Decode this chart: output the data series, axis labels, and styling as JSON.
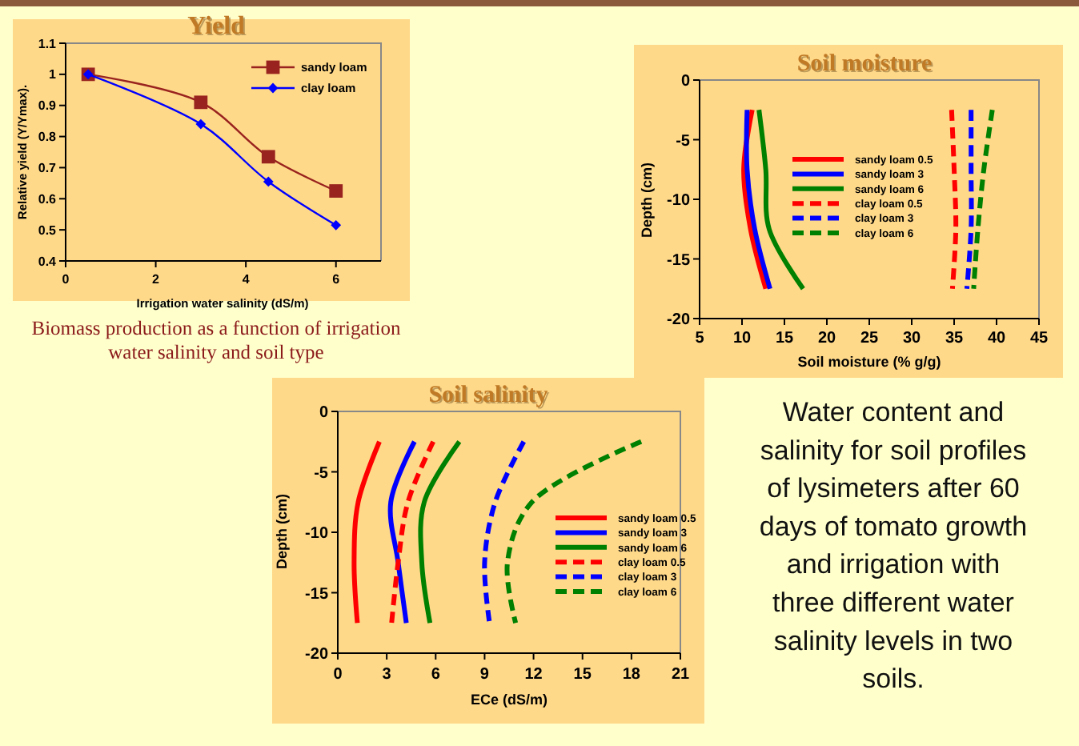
{
  "chart_data": [
    {
      "type": "line",
      "title": "Yield",
      "xlabel": "Irrigation water salinity (dS/m)",
      "ylabel": "Relative yield (Y/Ymax).",
      "xlim": [
        0,
        7
      ],
      "xticks": [
        0,
        2,
        4,
        6
      ],
      "ylim": [
        0.4,
        1.1
      ],
      "yticks": [
        0.4,
        0.5,
        0.6,
        0.7,
        0.8,
        0.9,
        1,
        1.1
      ],
      "legend": "top right",
      "annotations": [
        "Biomass production as a function of irrigation\nwater salinity and soil type"
      ],
      "series": [
        {
          "name": "sandy loam",
          "color": "#99231f",
          "marker": "square",
          "x": [
            0.5,
            3,
            4.5,
            6
          ],
          "values": [
            1,
            0.91,
            0.735,
            0.625
          ]
        },
        {
          "name": "clay loam",
          "color": "#0000ff",
          "marker": "diamond",
          "x": [
            0.5,
            3,
            4.5,
            6
          ],
          "values": [
            1,
            0.84,
            0.655,
            0.515
          ]
        }
      ]
    },
    {
      "type": "line",
      "title": "Soil moisture",
      "xlabel": "Soil moisture (% g/g)",
      "ylabel": "Depth (cm)",
      "xlim": [
        5,
        45
      ],
      "xticks": [
        5,
        10,
        15,
        20,
        25,
        30,
        35,
        40,
        45
      ],
      "ylim": [
        -20,
        0
      ],
      "yticks": [
        -20,
        -15,
        -10,
        -5,
        0
      ],
      "legend": "center",
      "marker": "none",
      "series": [
        {
          "name": "sandy loam 0.5",
          "color": "#ff0000",
          "line_style": "solid",
          "x": [
            11.2,
            10.2,
            11,
            12.8
          ],
          "values": [
            -2.5,
            -7.5,
            -12.5,
            -17.5
          ]
        },
        {
          "name": "sandy loam 3",
          "color": "#0000ff",
          "line_style": "solid",
          "x": [
            10.6,
            10.6,
            11.5,
            13.3
          ],
          "values": [
            -2.5,
            -7.5,
            -12.5,
            -17.5
          ]
        },
        {
          "name": "sandy loam 6",
          "color": "#008000",
          "line_style": "solid",
          "x": [
            12,
            12.8,
            13.2,
            17.2
          ],
          "values": [
            -2.5,
            -7.5,
            -12.5,
            -17.5
          ]
        },
        {
          "name": "clay loam 0.5",
          "color": "#ff0000",
          "line_style": "dashed",
          "x": [
            34.7,
            35,
            35.2,
            34.8
          ],
          "values": [
            -2.5,
            -7.5,
            -12.5,
            -17.5
          ]
        },
        {
          "name": "clay loam 3",
          "color": "#0000ff",
          "line_style": "dashed",
          "x": [
            37,
            37,
            37,
            36.5
          ],
          "values": [
            -2.5,
            -7.5,
            -12.5,
            -17.5
          ]
        },
        {
          "name": "clay loam 6",
          "color": "#008000",
          "line_style": "dashed",
          "x": [
            39.5,
            38.5,
            37.8,
            37.3
          ],
          "values": [
            -2.5,
            -7.5,
            -12.5,
            -17.5
          ]
        }
      ]
    },
    {
      "type": "line",
      "title": "Soil salinity",
      "xlabel": "ECe (dS/m)",
      "ylabel": "Depth (cm)",
      "xlim": [
        0,
        21
      ],
      "xticks": [
        0,
        3,
        6,
        9,
        12,
        15,
        18,
        21
      ],
      "ylim": [
        -20,
        0
      ],
      "yticks": [
        -20,
        -15,
        -10,
        -5,
        0
      ],
      "legend": "right",
      "marker": "none",
      "series": [
        {
          "name": "sandy loam 0.5",
          "color": "#ff0000",
          "line_style": "solid",
          "x": [
            2.55,
            1.25,
            1,
            1.2
          ],
          "values": [
            -2.5,
            -7.5,
            -12.5,
            -17.5
          ]
        },
        {
          "name": "sandy loam 3",
          "color": "#0000ff",
          "line_style": "solid",
          "x": [
            4.7,
            3.25,
            3.7,
            4.2
          ],
          "values": [
            -2.5,
            -7.5,
            -12.5,
            -17.5
          ]
        },
        {
          "name": "sandy loam 6",
          "color": "#008000",
          "line_style": "solid",
          "x": [
            7.45,
            5.3,
            5.15,
            5.65
          ],
          "values": [
            -2.5,
            -7.5,
            -12.5,
            -17.5
          ]
        },
        {
          "name": "clay loam 0.5",
          "color": "#ff0000",
          "line_style": "dashed",
          "x": [
            5.85,
            4.3,
            3.7,
            3.3
          ],
          "values": [
            -2.5,
            -7.5,
            -12.5,
            -17.5
          ]
        },
        {
          "name": "clay loam 3",
          "color": "#0000ff",
          "line_style": "dashed",
          "x": [
            11.4,
            9.65,
            9,
            9.3
          ],
          "values": [
            -2.5,
            -7.5,
            -12.5,
            -17.5
          ]
        },
        {
          "name": "clay loam 6",
          "color": "#008000",
          "line_style": "dashed",
          "x": [
            18.6,
            11.9,
            10.4,
            10.9
          ],
          "values": [
            -2.5,
            -7.5,
            -12.5,
            -17.5
          ]
        }
      ]
    },
    {
      "type": "other",
      "annotations": [
        "Water content and\nsalinity for soil profiles\nof lysimeters after 60\ndays of tomato growth\nand irrigation with\nthree different water\nsalinity levels in two\nsoils."
      ]
    }
  ]
}
